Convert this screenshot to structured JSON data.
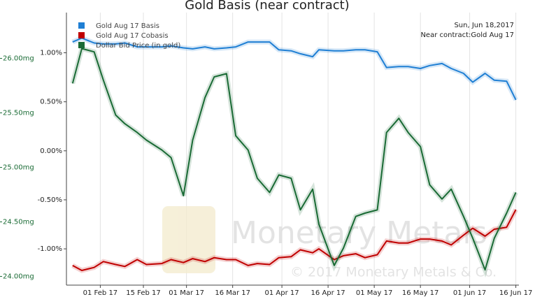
{
  "chart_data": {
    "type": "line",
    "title": "Gold Basis (near contract)",
    "annotations": [
      "Sun, Jun 18,2017",
      "Near contract:Gold Aug 17"
    ],
    "watermark": [
      "Monetary Metals",
      "© 2017 Monetary Metals & Co."
    ],
    "legend": "top-left",
    "x": [
      "2017-01-23",
      "2017-01-26",
      "2017-01-30",
      "2017-02-02",
      "2017-02-06",
      "2017-02-09",
      "2017-02-13",
      "2017-02-16",
      "2017-02-21",
      "2017-02-24",
      "2017-02-28",
      "2017-03-03",
      "2017-03-07",
      "2017-03-10",
      "2017-03-14",
      "2017-03-17",
      "2017-03-21",
      "2017-03-24",
      "2017-03-28",
      "2017-03-31",
      "2017-04-04",
      "2017-04-07",
      "2017-04-11",
      "2017-04-13",
      "2017-04-18",
      "2017-04-21",
      "2017-04-25",
      "2017-04-28",
      "2017-05-02",
      "2017-05-05",
      "2017-05-09",
      "2017-05-12",
      "2017-05-16",
      "2017-05-19",
      "2017-05-23",
      "2017-05-26",
      "2017-05-30",
      "2017-06-02",
      "2017-06-06",
      "2017-06-09",
      "2017-06-13",
      "2017-06-16"
    ],
    "xlim": [
      "2017-01-21",
      "2017-06-17"
    ],
    "xticks": [
      {
        "value": "2017-02-01",
        "label": "01 Feb 17"
      },
      {
        "value": "2017-02-15",
        "label": "15 Feb 17"
      },
      {
        "value": "2017-03-01",
        "label": "01 Mar 17"
      },
      {
        "value": "2017-03-16",
        "label": "16 Mar 17"
      },
      {
        "value": "2017-04-01",
        "label": "01 Apr 17"
      },
      {
        "value": "2017-04-16",
        "label": "16 Apr 17"
      },
      {
        "value": "2017-05-01",
        "label": "01 May 17"
      },
      {
        "value": "2017-05-16",
        "label": "16 May 17"
      },
      {
        "value": "2017-06-01",
        "label": "01 Jun 17"
      },
      {
        "value": "2017-06-16",
        "label": "16 Jun 17"
      }
    ],
    "ylim": [
      -1.37,
      1.41
    ],
    "yticks": [
      {
        "value": 1,
        "label": "1.00%"
      },
      {
        "value": 0.5,
        "label": "0.50%"
      },
      {
        "value": 0,
        "label": "0.00%"
      },
      {
        "value": -0.5,
        "label": "-0.50%"
      },
      {
        "value": -1,
        "label": "-1.00%"
      }
    ],
    "y2lim": [
      23.92,
      26.42
    ],
    "y2ticks": [
      {
        "value": 26,
        "label": "26.00mg"
      },
      {
        "value": 25.5,
        "label": "25.50mg"
      },
      {
        "value": 25,
        "label": "25.00mg"
      },
      {
        "value": 24.5,
        "label": "24.50mg"
      },
      {
        "value": 24,
        "label": "24.00mg"
      }
    ],
    "y2color": "#1a6b35",
    "grid": true,
    "series": [
      {
        "name": "Gold Aug 17 Basis",
        "color": "#1f7fd4",
        "values": [
          1.11,
          1.15,
          1.1,
          1.09,
          1.09,
          1.1,
          1.06,
          1.06,
          1.06,
          1.07,
          1.05,
          1.04,
          1.06,
          1.04,
          1.05,
          1.06,
          1.11,
          1.11,
          1.11,
          1.03,
          1.02,
          0.99,
          0.96,
          1.03,
          1.02,
          1.02,
          1.03,
          1.03,
          1.01,
          0.85,
          0.86,
          0.86,
          0.84,
          0.87,
          0.89,
          0.84,
          0.79,
          0.7,
          0.79,
          0.72,
          0.71,
          0.52
        ]
      },
      {
        "name": "Gold Aug 17 Cobasis",
        "color": "#c00000",
        "values": [
          -1.17,
          -1.22,
          -1.19,
          -1.13,
          -1.16,
          -1.18,
          -1.11,
          -1.16,
          -1.15,
          -1.11,
          -1.14,
          -1.1,
          -1.13,
          -1.09,
          -1.11,
          -1.11,
          -1.17,
          -1.15,
          -1.16,
          -1.09,
          -1.08,
          -1.01,
          -1.04,
          -1.0,
          -1.11,
          -1.07,
          -1.05,
          -1.09,
          -1.06,
          -0.92,
          -0.94,
          -0.94,
          -0.9,
          -0.9,
          -0.92,
          -0.96,
          -0.86,
          -0.79,
          -0.87,
          -0.8,
          -0.78,
          -0.6
        ]
      },
      {
        "name": "Dollar Bid Price (in gold)",
        "color": "#1a6b35",
        "axis": "y2",
        "values": [
          25.77,
          26.09,
          26.06,
          25.8,
          25.48,
          25.4,
          25.32,
          25.25,
          25.16,
          25.09,
          24.74,
          25.25,
          25.64,
          25.83,
          25.86,
          25.29,
          25.16,
          24.9,
          24.77,
          24.93,
          24.9,
          24.61,
          24.8,
          24.48,
          24.1,
          24.26,
          24.55,
          24.58,
          24.61,
          25.32,
          25.45,
          25.32,
          25.19,
          24.84,
          24.71,
          24.8,
          24.55,
          24.35,
          24.06,
          24.35,
          24.58,
          24.77
        ]
      }
    ]
  }
}
